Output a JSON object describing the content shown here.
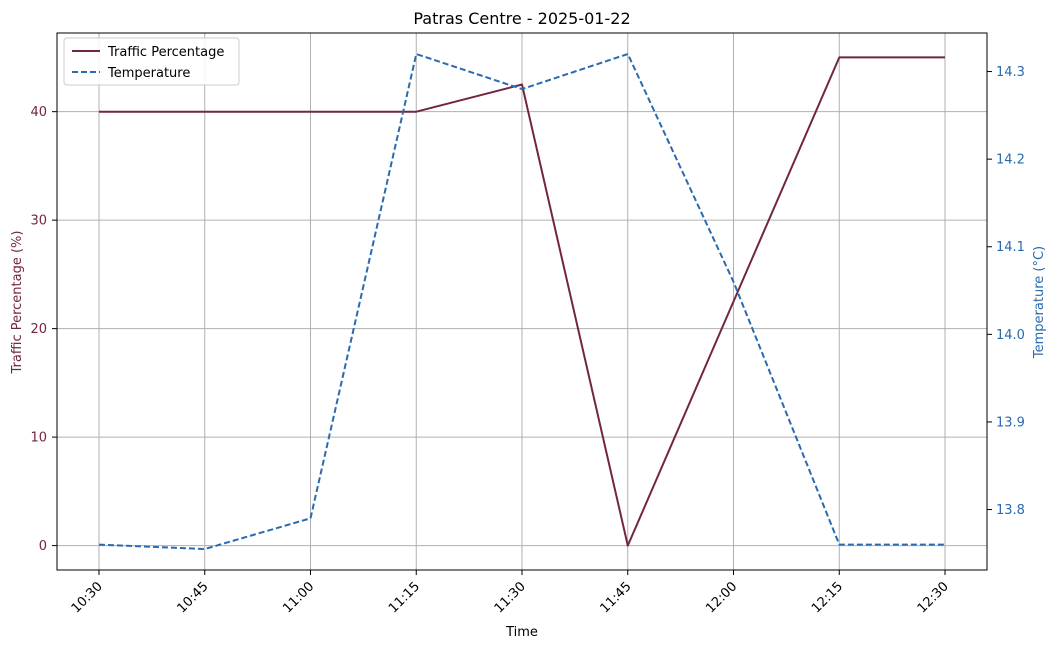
{
  "chart_data": {
    "type": "line",
    "title": "Patras Centre - 2025-01-22",
    "xlabel": "Time",
    "ylabel_left": "Traffic Percentage (%)",
    "ylabel_right": "Temperature (°C)",
    "categories": [
      "10:30",
      "10:45",
      "11:00",
      "11:15",
      "11:30",
      "11:45",
      "12:00",
      "12:15",
      "12:30"
    ],
    "ylim_left": [
      -2.25,
      47.25
    ],
    "yticks_left": [
      0,
      10,
      20,
      30,
      40
    ],
    "ylim_right": [
      13.731,
      14.344
    ],
    "yticks_right": [
      "13.8",
      "13.9",
      "14.0",
      "14.1",
      "14.2",
      "14.3"
    ],
    "grid": true,
    "legend_position": "upper-left",
    "series": [
      {
        "name": "Traffic Percentage",
        "axis": "left",
        "style": "solid",
        "color": "#722640",
        "values": [
          40,
          40,
          40,
          40,
          42.5,
          0,
          22.5,
          45,
          45
        ]
      },
      {
        "name": "Temperature",
        "axis": "right",
        "style": "dashed",
        "color": "#2a6aae",
        "values": [
          13.76,
          13.755,
          13.79,
          14.32,
          14.28,
          14.32,
          14.06,
          13.76,
          13.76
        ]
      }
    ],
    "colors": {
      "left_axis": "#722640",
      "right_axis": "#2a6aae"
    }
  }
}
